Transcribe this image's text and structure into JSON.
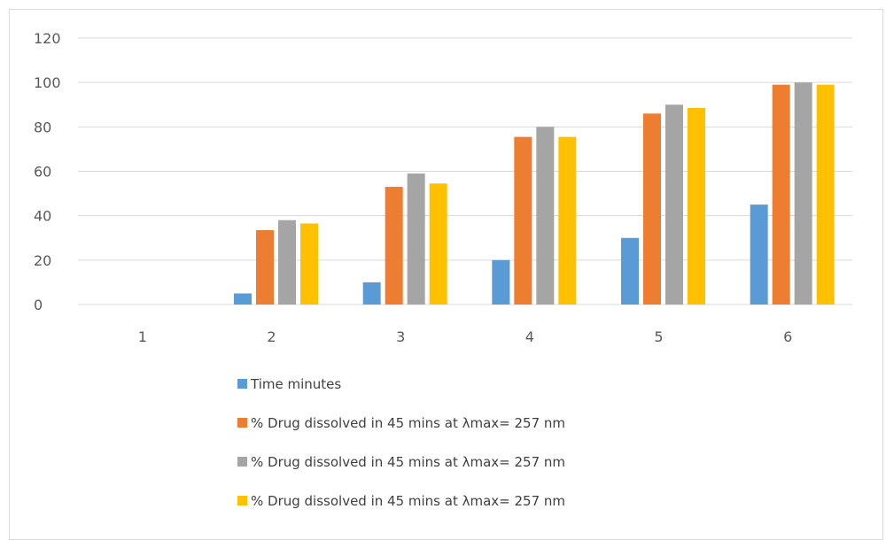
{
  "chart_data": {
    "type": "bar",
    "title": "",
    "xlabel": "",
    "ylabel": "",
    "categories": [
      "1",
      "2",
      "3",
      "4",
      "5",
      "6"
    ],
    "ylim": [
      0,
      120
    ],
    "yticks": [
      0,
      20,
      40,
      60,
      80,
      100,
      120
    ],
    "grid": true,
    "legend_position": "bottom",
    "series": [
      {
        "name": "Time minutes",
        "color": "#5B9BD5",
        "values": [
          0,
          5,
          10,
          20,
          30,
          45
        ]
      },
      {
        "name": "% Drug dissolved  in 45 mins  at λmax= 257 nm",
        "color": "#ED7D31",
        "values": [
          0,
          33.5,
          53,
          75.5,
          86,
          99
        ]
      },
      {
        "name": "% Drug dissolved  in 45 mins  at λmax= 257 nm",
        "color": "#A5A5A5",
        "values": [
          0,
          38,
          59,
          80,
          90,
          100
        ]
      },
      {
        "name": "% Drug dissolved  in 45 mins  at λmax= 257 nm",
        "color": "#FFC000",
        "values": [
          0,
          36.5,
          54.5,
          75.5,
          88.5,
          99
        ]
      }
    ]
  }
}
